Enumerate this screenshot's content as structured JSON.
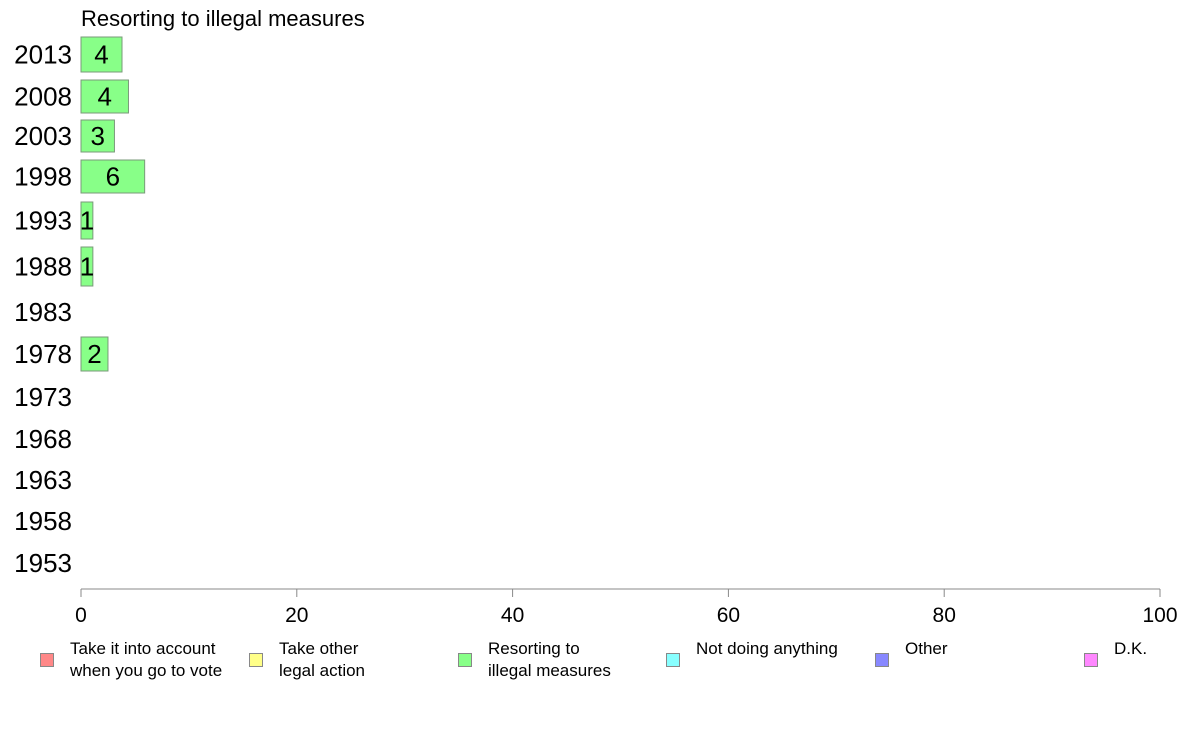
{
  "chart_data": {
    "type": "bar",
    "orientation": "horizontal",
    "title": "Resorting to illegal measures",
    "categories": [
      "2013",
      "2008",
      "2003",
      "1998",
      "1993",
      "1988",
      "1983",
      "1978",
      "1973",
      "1968",
      "1963",
      "1958",
      "1953"
    ],
    "values": [
      3.8,
      4.4,
      3.1,
      5.9,
      1.1,
      1.1,
      null,
      2.5,
      null,
      null,
      null,
      null,
      null
    ],
    "data_labels": [
      "4",
      "4",
      "3",
      "6",
      "1",
      "1",
      "",
      "2",
      "",
      "",
      "",
      "",
      ""
    ],
    "bar_color": "#88ff88",
    "xlim": [
      0,
      100
    ],
    "xticks": [
      "0",
      "20",
      "40",
      "60",
      "80",
      "100"
    ],
    "grid": false,
    "legend_position": "bottom",
    "legend": [
      {
        "label": "Take it into account\nwhen you go to vote",
        "color": "#ff8888"
      },
      {
        "label": "Take other\nlegal action",
        "color": "#ffff88"
      },
      {
        "label": "Resorting to\nillegal measures",
        "color": "#88ff88"
      },
      {
        "label": "Not doing anything",
        "color": "#88ffff"
      },
      {
        "label": "Other",
        "color": "#8888ff"
      },
      {
        "label": "D.K.",
        "color": "#ff88ff"
      }
    ]
  }
}
